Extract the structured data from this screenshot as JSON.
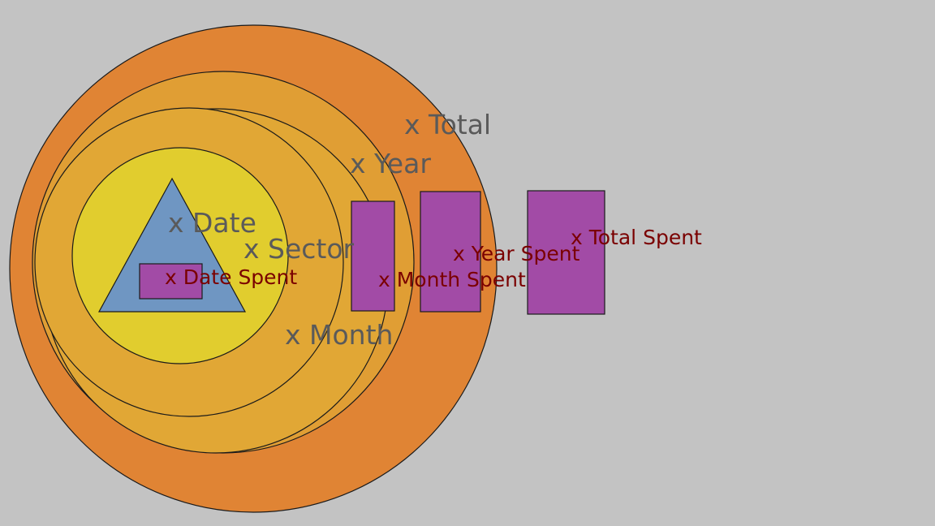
{
  "colors": {
    "background": "#c3c3c3",
    "total": "#e08434",
    "year": "#e09e34",
    "month": "#e1a735",
    "sector": "#e1a735",
    "date": "#e1cd2e",
    "triangle": "#6f96c2",
    "spent": "#a24ba6",
    "outline": "#1a1a1a",
    "label_gray": "#5a5a5a",
    "label_red": "#7a0000"
  },
  "labels": {
    "total": "x Total",
    "year": "x Year",
    "date": "x Date",
    "sector": "x Sector",
    "month": "x Month",
    "date_spent": "x Date Spent",
    "month_spent": "x Month Spent",
    "year_spent": "x Year Spent",
    "total_spent": "x Total Spent"
  }
}
